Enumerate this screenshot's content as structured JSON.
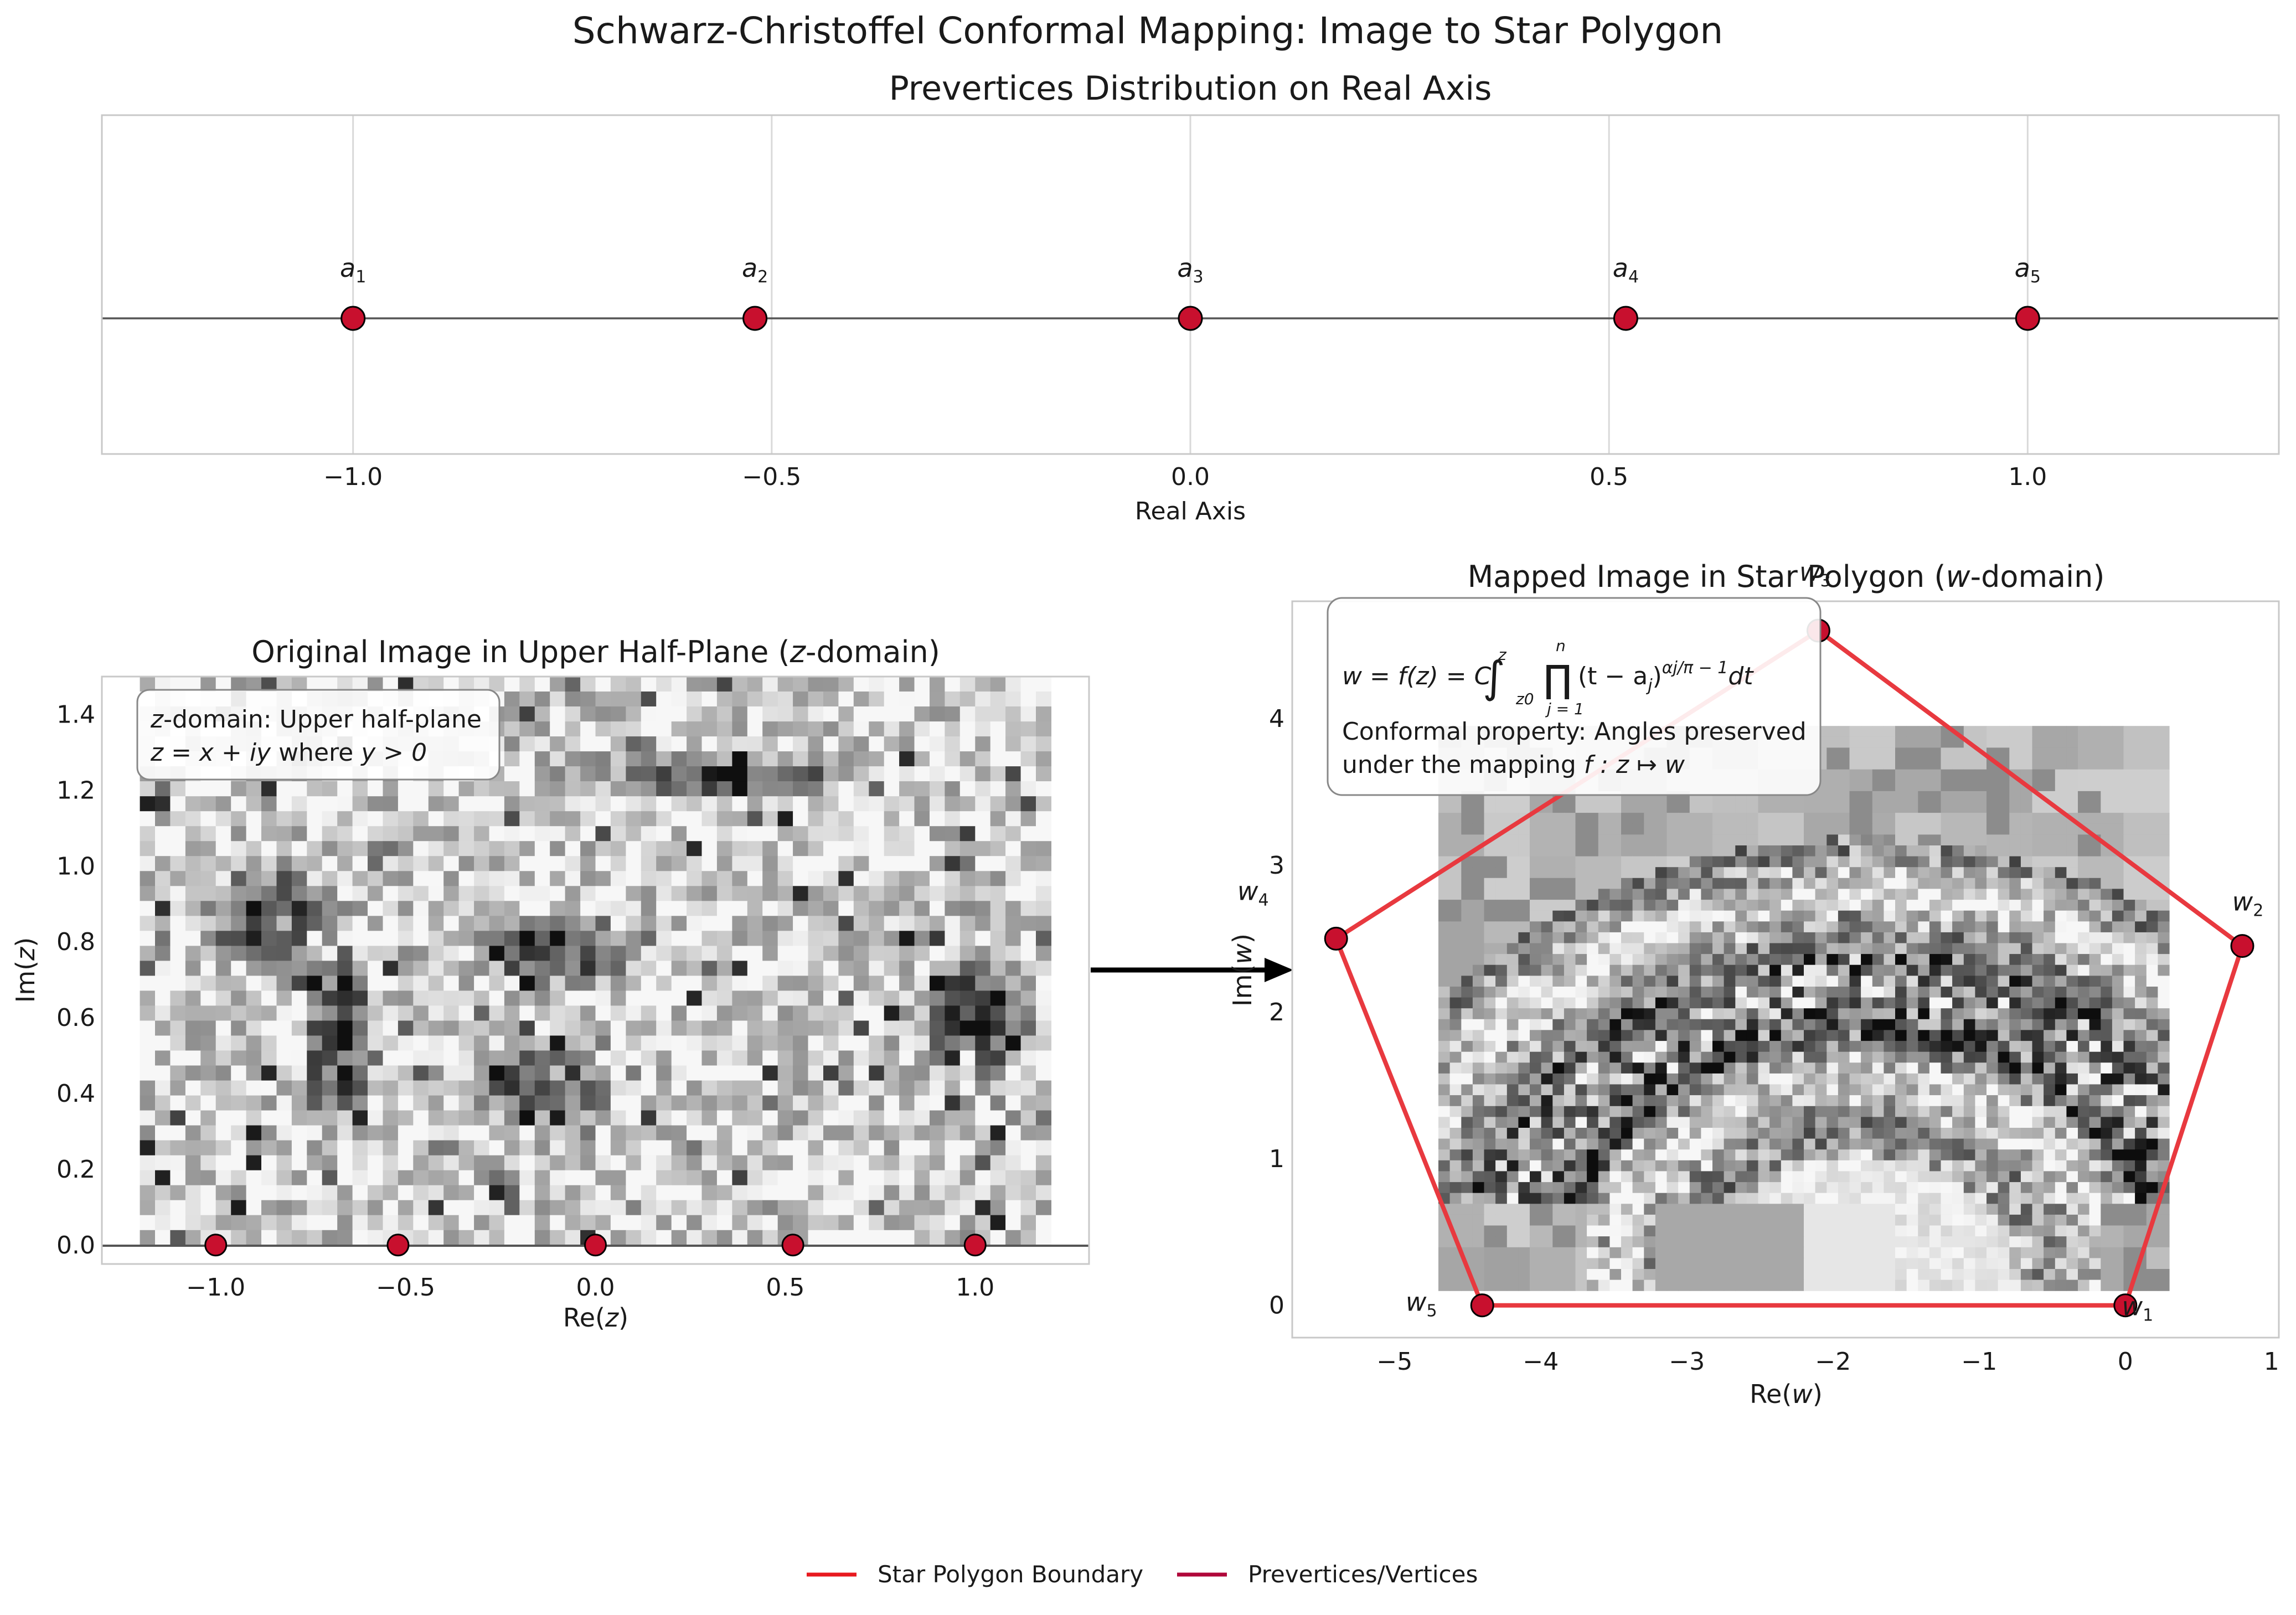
{
  "suptitle": "Schwarz-Christoffel Conformal Mapping: Image to Star Polygon",
  "colors": {
    "vertex": "#c8102e",
    "polygon": "#e8393f",
    "legend_boundary": "#e8191f",
    "legend_vertices": "#b0073a",
    "axis_line": "#555555",
    "grid": "#d9d9d9",
    "frame": "#c8c8c8"
  },
  "legend": {
    "items": [
      {
        "label": "Star Polygon Boundary",
        "color": "#e8191f"
      },
      {
        "label": "Prevertices/Vertices",
        "color": "#b0073a"
      }
    ]
  },
  "chart_data": [
    {
      "id": "prevertices",
      "type": "scatter",
      "title": "Prevertices Distribution on Real Axis",
      "xlabel": "Real Axis",
      "ylabel": "",
      "xlim": [
        -1.3,
        1.3
      ],
      "xticks": [
        -1.0,
        -0.5,
        0.0,
        0.5,
        1.0
      ],
      "xtick_labels": [
        "−1.0",
        "−0.5",
        "0.0",
        "0.5",
        "1.0"
      ],
      "grid": true,
      "points": [
        {
          "label": "a",
          "sub": "1",
          "x": -1.0,
          "y": 0
        },
        {
          "label": "a",
          "sub": "2",
          "x": -0.52,
          "y": 0
        },
        {
          "label": "a",
          "sub": "3",
          "x": 0.0,
          "y": 0
        },
        {
          "label": "a",
          "sub": "4",
          "x": 0.52,
          "y": 0
        },
        {
          "label": "a",
          "sub": "5",
          "x": 1.0,
          "y": 0
        }
      ]
    },
    {
      "id": "zdomain",
      "type": "heatmap",
      "title_text": "Original Image in Upper Half-Plane (",
      "title_math": "z",
      "title_tail": "-domain)",
      "xlabel_text": "Re(",
      "xlabel_math": "z",
      "ylabel_text": "Im(",
      "ylabel_math": "z",
      "label_close": ")",
      "xlim": [
        -1.3,
        1.3
      ],
      "ylim": [
        -0.05,
        1.5
      ],
      "xticks": [
        -1.0,
        -0.5,
        0.0,
        0.5,
        1.0
      ],
      "xtick_labels": [
        "−1.0",
        "−0.5",
        "0.0",
        "0.5",
        "1.0"
      ],
      "yticks": [
        0.0,
        0.2,
        0.4,
        0.6,
        0.8,
        1.0,
        1.2,
        1.4
      ],
      "ytick_labels": [
        "0.0",
        "0.2",
        "0.4",
        "0.6",
        "0.8",
        "1.0",
        "1.2",
        "1.4"
      ],
      "image_extent": [
        -1.2,
        1.2,
        0.0,
        1.5
      ],
      "points": [
        {
          "x": -1.0,
          "y": 0
        },
        {
          "x": -0.52,
          "y": 0
        },
        {
          "x": 0.0,
          "y": 0
        },
        {
          "x": 0.52,
          "y": 0
        },
        {
          "x": 1.0,
          "y": 0
        }
      ],
      "annotation": {
        "line1_math": "z",
        "line1_text": "-domain: Upper half-plane",
        "line2_math": "z = x + iy",
        "line2_text": " where ",
        "line2_math2": "y > 0"
      }
    },
    {
      "id": "wdomain",
      "type": "heatmap",
      "title_text": "Mapped Image in Star Polygon (",
      "title_math": "w",
      "title_tail": "-domain)",
      "xlabel_text": "Re(",
      "xlabel_math": "w",
      "ylabel_text": "Im(",
      "ylabel_math": "w",
      "label_close": ")",
      "xlim": [
        -5.7,
        1.05
      ],
      "ylim": [
        -0.22,
        4.8
      ],
      "xticks": [
        -5,
        -4,
        -3,
        -2,
        -1,
        0,
        1
      ],
      "xtick_labels": [
        "−5",
        "−4",
        "−3",
        "−2",
        "−1",
        "0",
        "1"
      ],
      "yticks": [
        0,
        1,
        2,
        3,
        4
      ],
      "ytick_labels": [
        "0",
        "1",
        "2",
        "3",
        "4"
      ],
      "image_extent": [
        -4.7,
        0.3,
        0.1,
        3.95
      ],
      "polygon": [
        {
          "label": "w",
          "sub": "1",
          "x": 0.0,
          "y": 0.0
        },
        {
          "label": "w",
          "sub": "2",
          "x": 0.8,
          "y": 2.45
        },
        {
          "label": "w",
          "sub": "3",
          "x": -2.1,
          "y": 4.6
        },
        {
          "label": "w",
          "sub": "4",
          "x": -5.4,
          "y": 2.5
        },
        {
          "label": "w",
          "sub": "5",
          "x": -4.4,
          "y": 0.0
        }
      ],
      "annotation": {
        "formula_label": "w = f(z) = C",
        "formula_tail": "(t − a",
        "formula_sub": "j",
        "formula_exp": "αj/π − 1",
        "formula_end": "dt",
        "int_upper": "z",
        "int_lower": "z0",
        "prod_upper": "n",
        "prod_lower": "j = 1",
        "line2": "Conformal property: Angles preserved",
        "line3_text": "under the mapping ",
        "line3_math": "f : z ↦ w"
      }
    }
  ]
}
